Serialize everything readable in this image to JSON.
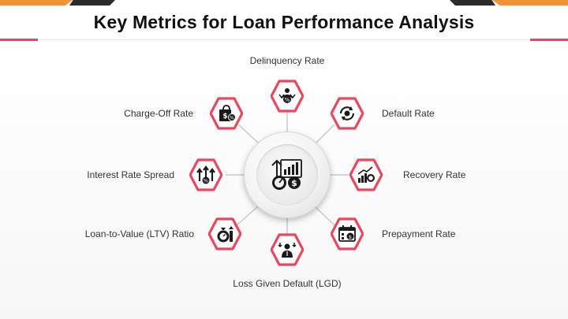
{
  "title": "Key Metrics for Loan Performance Analysis",
  "colors": {
    "accent": "#e8475e",
    "orange": "#f0923a",
    "dark": "#2b2b2b",
    "connector": "#c8c8c8"
  },
  "hub": {
    "icon": "financial-analysis-icon"
  },
  "metrics": [
    {
      "label": "Delinquency Rate",
      "icon": "debt-collection-icon"
    },
    {
      "label": "Default Rate",
      "icon": "refresh-cycle-icon"
    },
    {
      "label": "Recovery Rate",
      "icon": "growth-coins-icon"
    },
    {
      "label": "Prepayment Rate",
      "icon": "calendar-payment-icon"
    },
    {
      "label": "Loss Given Default (LGD)",
      "icon": "person-loss-icon"
    },
    {
      "label": "Loan-to-Value (LTV) Ratio",
      "icon": "money-bag-value-icon"
    },
    {
      "label": "Interest Rate Spread",
      "icon": "interest-arrows-icon"
    },
    {
      "label": "Charge-Off Rate",
      "icon": "shopping-bag-percent-icon"
    }
  ]
}
